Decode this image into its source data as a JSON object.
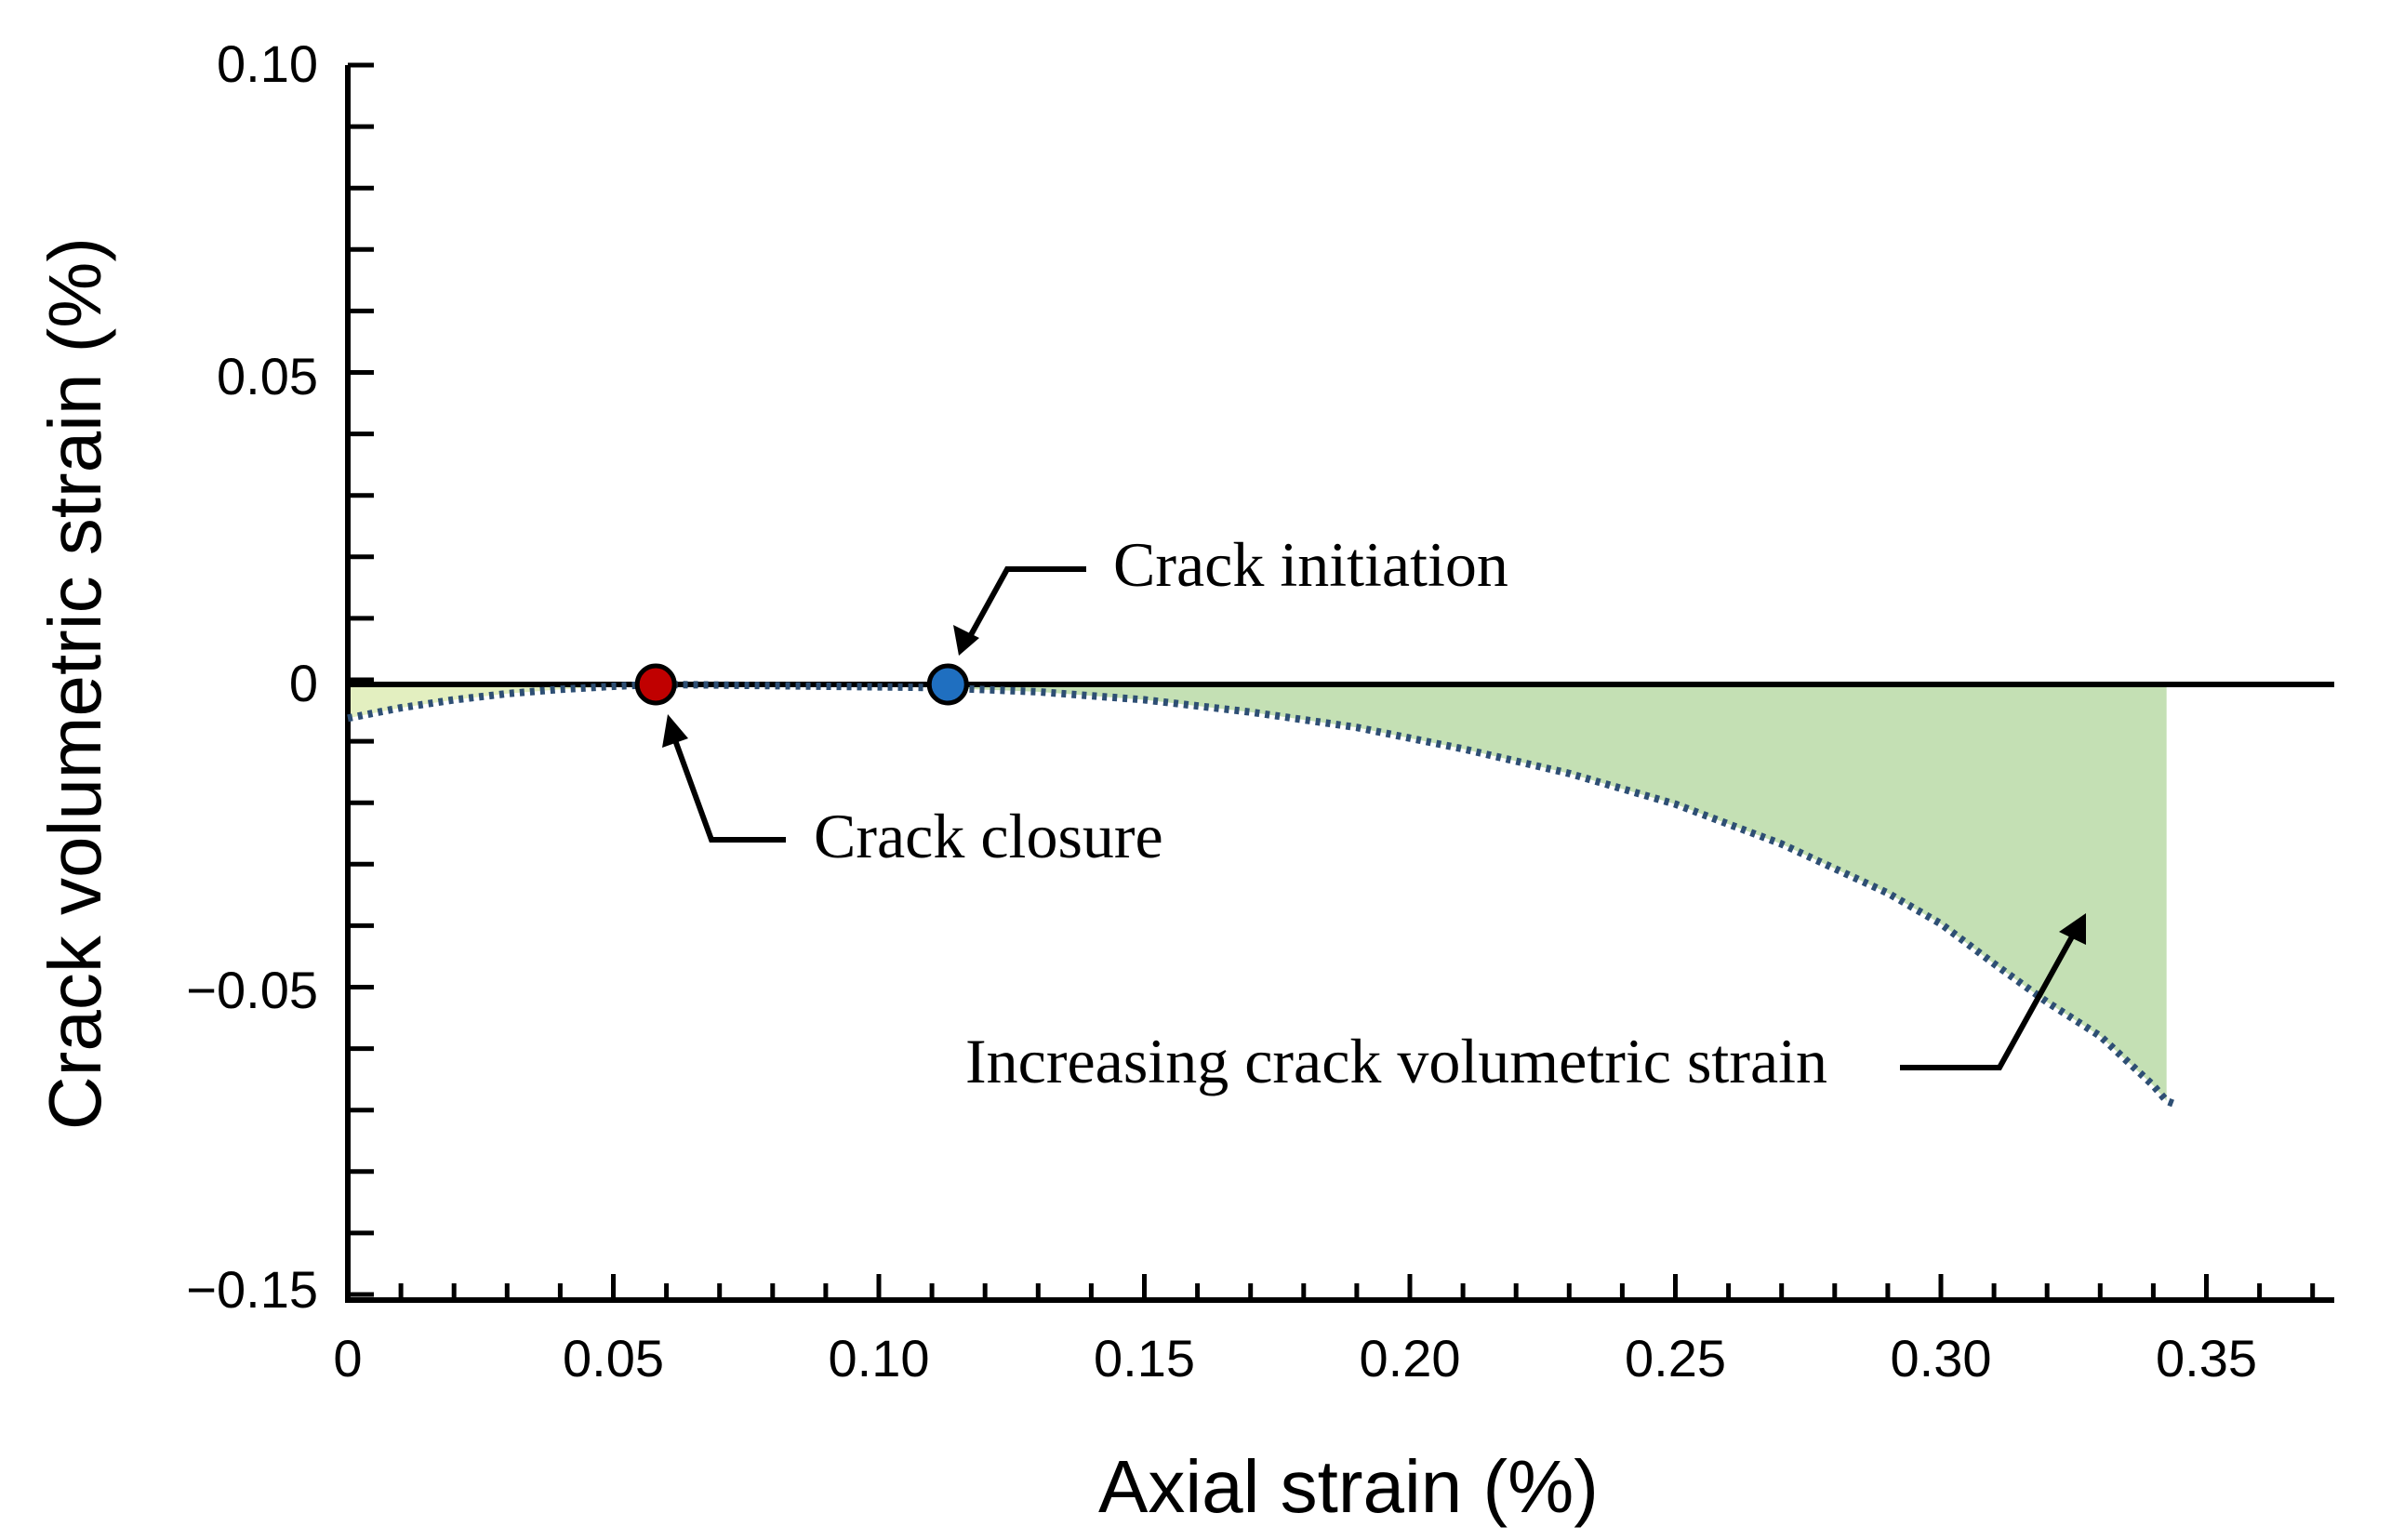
{
  "chart_data": {
    "type": "line",
    "title": "",
    "xlabel": "Axial strain (%)",
    "ylabel": "Crack volumetric strain (%)",
    "xlim": [
      0,
      0.375
    ],
    "ylim_visual": [
      "-0.15",
      "0.10"
    ],
    "x_ticks": [
      {
        "value": 0,
        "label": "0"
      },
      {
        "value": 0.05,
        "label": "0.05"
      },
      {
        "value": 0.1,
        "label": "0.10"
      },
      {
        "value": 0.15,
        "label": "0.15"
      },
      {
        "value": 0.2,
        "label": "0.20"
      },
      {
        "value": 0.25,
        "label": "0.25"
      },
      {
        "value": 0.3,
        "label": "0.30"
      },
      {
        "value": 0.35,
        "label": "0.35"
      }
    ],
    "y_ticks": [
      {
        "value": 0.1,
        "label": "0.10"
      },
      {
        "value": 0.05,
        "label": "0.05"
      },
      {
        "value": 0,
        "label": "0"
      },
      {
        "value": -0.05,
        "label": "−0.05"
      },
      {
        "value": -0.15,
        "label": "−0.15"
      }
    ],
    "series": [
      {
        "style": "dotted",
        "color": "#2e4f74",
        "x": [
          0,
          0.01,
          0.02,
          0.03,
          0.04,
          0.05,
          0.058,
          0.07,
          0.09,
          0.11,
          0.113,
          0.13,
          0.15,
          0.17,
          0.19,
          0.21,
          0.23,
          0.25,
          0.27,
          0.29,
          0.3,
          0.31,
          0.32,
          0.33,
          0.335,
          0.34,
          0.3425,
          0.344
        ],
        "y": [
          -0.0055,
          -0.0038,
          -0.0025,
          -0.0015,
          -0.0008,
          -0.0003,
          0,
          -0.0001,
          -0.0003,
          -0.0005,
          -0.0006,
          -0.0012,
          -0.0025,
          -0.0045,
          -0.007,
          -0.0105,
          -0.0145,
          -0.0195,
          -0.026,
          -0.034,
          -0.039,
          -0.0455,
          -0.0535,
          -0.0645,
          -0.0725,
          -0.0805,
          -0.0855,
          -0.0865
        ]
      }
    ],
    "fill_color": "#c4e0b4",
    "fill_color_left": "#e3efc0",
    "zero_line_color": "#000000",
    "points": [
      {
        "x": 0.058,
        "y": 0,
        "color": "#c00000"
      },
      {
        "x": 0.113,
        "y": 0,
        "color": "#1f6fc0"
      }
    ],
    "annotations": [
      {
        "text": "Crack initiation"
      },
      {
        "text": "Crack closure"
      },
      {
        "text": "Increasing crack volumetric strain"
      }
    ]
  }
}
